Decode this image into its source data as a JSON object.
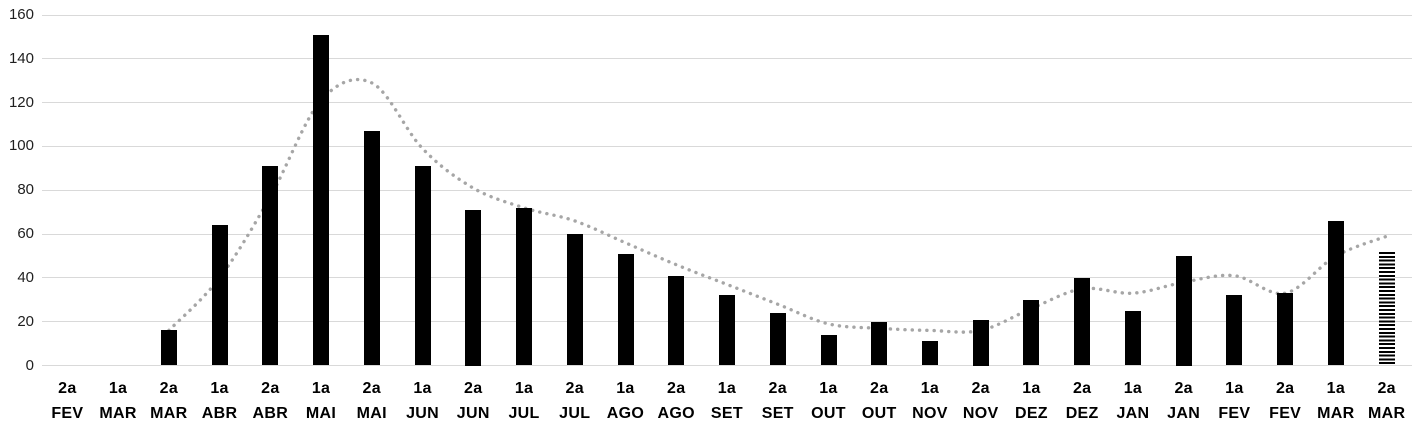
{
  "chart_data": {
    "type": "bar",
    "title": "",
    "xlabel": "",
    "ylabel": "",
    "ylim": [
      0,
      160
    ],
    "ytick_step": 20,
    "y_ticks": [
      "0",
      "20",
      "40",
      "60",
      "80",
      "100",
      "120",
      "140",
      "160"
    ],
    "grid": true,
    "legend": "none",
    "categories": [
      {
        "period": "2a",
        "month": "FEV"
      },
      {
        "period": "1a",
        "month": "MAR"
      },
      {
        "period": "2a",
        "month": "MAR"
      },
      {
        "period": "1a",
        "month": "ABR"
      },
      {
        "period": "2a",
        "month": "ABR"
      },
      {
        "period": "1a",
        "month": "MAI"
      },
      {
        "period": "2a",
        "month": "MAI"
      },
      {
        "period": "1a",
        "month": "JUN"
      },
      {
        "period": "2a",
        "month": "JUN"
      },
      {
        "period": "1a",
        "month": "JUL"
      },
      {
        "period": "2a",
        "month": "JUL"
      },
      {
        "period": "1a",
        "month": "AGO"
      },
      {
        "period": "2a",
        "month": "AGO"
      },
      {
        "period": "1a",
        "month": "SET"
      },
      {
        "period": "2a",
        "month": "SET"
      },
      {
        "period": "1a",
        "month": "OUT"
      },
      {
        "period": "2a",
        "month": "OUT"
      },
      {
        "period": "1a",
        "month": "NOV"
      },
      {
        "period": "2a",
        "month": "NOV"
      },
      {
        "period": "1a",
        "month": "DEZ"
      },
      {
        "period": "2a",
        "month": "DEZ"
      },
      {
        "period": "1a",
        "month": "JAN"
      },
      {
        "period": "2a",
        "month": "JAN"
      },
      {
        "period": "1a",
        "month": "FEV"
      },
      {
        "period": "2a",
        "month": "FEV"
      },
      {
        "period": "1a",
        "month": "MAR"
      },
      {
        "period": "2a",
        "month": "MAR"
      }
    ],
    "series": [
      {
        "name": "bars",
        "style": "solid-black",
        "values": [
          null,
          null,
          16,
          64,
          91,
          151,
          107,
          91,
          71,
          72,
          60,
          51,
          41,
          32,
          24,
          14,
          20,
          11,
          21,
          30,
          40,
          25,
          50,
          32,
          33,
          66,
          52
        ],
        "bar_styles": [
          "solid",
          "solid",
          "solid",
          "solid",
          "solid",
          "solid",
          "solid",
          "solid",
          "solid",
          "solid",
          "solid",
          "solid",
          "solid",
          "solid",
          "solid",
          "solid",
          "solid",
          "solid",
          "solid",
          "solid",
          "solid",
          "solid",
          "solid",
          "solid",
          "solid",
          "solid",
          "hatched"
        ]
      },
      {
        "name": "trend-dotted-moving-average",
        "style": "dotted-gray-smooth",
        "values": [
          null,
          null,
          16,
          40,
          77,
          121,
          129,
          99,
          81,
          72,
          66,
          56,
          46,
          37,
          28,
          19,
          17,
          16,
          16,
          26,
          35,
          33,
          38,
          41,
          33,
          50,
          59
        ]
      }
    ],
    "colors": {
      "bar": "#000000",
      "bar_hatch_bg": "#ffffff",
      "trend": "#a6a6a6",
      "gridline": "#d9d9d9",
      "y_label": "#1f1f1f",
      "x_label": "#000000",
      "background": "#ffffff"
    }
  }
}
